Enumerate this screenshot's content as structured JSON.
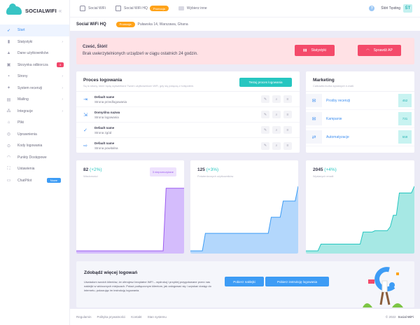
{
  "brand": {
    "name": "SOCIALWIFI",
    "collapse_icon": "double-chevron-left-icon"
  },
  "sidebar": {
    "items": [
      {
        "label": "Start",
        "icon": "rocket-icon",
        "active": true
      },
      {
        "label": "Statystyki",
        "icon": "bar-chart-icon",
        "chevron": true
      },
      {
        "label": "Dane użytkowników",
        "icon": "users-icon"
      },
      {
        "label": "Skrzynka odbiorcza",
        "icon": "inbox-icon",
        "badge": "3"
      },
      {
        "label": "Strony",
        "icon": "pages-icon",
        "chevron": true
      },
      {
        "label": "System recenzji",
        "icon": "star-icon",
        "chevron": true
      },
      {
        "label": "Mailing",
        "icon": "mail-icon",
        "chevron": true
      },
      {
        "label": "Integracje",
        "icon": "plug-icon",
        "chevron": true
      },
      {
        "label": "Pliki",
        "icon": "file-icon"
      },
      {
        "label": "Uprawnienia",
        "icon": "shield-icon"
      },
      {
        "label": "Kody logowania",
        "icon": "key-icon"
      },
      {
        "label": "Punkty Dostępowe",
        "icon": "wifi-icon"
      },
      {
        "label": "Ustawienia",
        "icon": "settings-icon"
      },
      {
        "label": "ChatPilot",
        "icon": "chat-icon",
        "badge_new": "Nowe"
      }
    ]
  },
  "topbar": {
    "crumbs": [
      {
        "label": "Social WiFi",
        "icon": "home-icon"
      },
      {
        "label": "Social WiFi HQ",
        "icon": "warning-icon",
        "badge": "Promocja"
      },
      {
        "label": "Wybierz inne",
        "icon": "folder-icon"
      }
    ],
    "help_icon": "?",
    "user_name": "Ślóń Tęsting",
    "avatar": "ŚT"
  },
  "subbar": {
    "title": "Social WiFi HQ",
    "badge": "Promocja",
    "address": "Puławska 14, Warszawa, Ghana"
  },
  "alert": {
    "title": "Cześć, Ślóń!",
    "message": "Brak uwierzytelnionych urządzeń w ciągu ostatnich 24 godzin.",
    "buttons": [
      {
        "label": "Statystyki",
        "icon": "bar-chart-icon"
      },
      {
        "label": "Sprawdź AP",
        "icon": "wifi-icon"
      }
    ]
  },
  "login_process": {
    "title": "Proces logowania",
    "subtitle": "Są to strony, które będą wyświetlane Twoim użytkownikom WiFi, gdy się połączą z hotspotem.",
    "test_button": "Testuj proces logowania",
    "rows": [
      {
        "name": "Default name",
        "page": "Strona przedlogowania",
        "icon": "login-arrow-icon"
      },
      {
        "name": "Domyślna nazwa",
        "page": "Strona logowania",
        "icon": "login-door-icon"
      },
      {
        "name": "Default name",
        "page": "Strona zgód",
        "icon": "check-icon"
      },
      {
        "name": "Default name",
        "page": "Strona powitalna",
        "icon": "welcome-icon"
      }
    ],
    "actions": [
      "edit-icon",
      "search-icon",
      "menu-icon"
    ]
  },
  "marketing": {
    "title": "Marketing",
    "subtitle": "Całkowita liczba wysłanych e-maili.",
    "rows": [
      {
        "label": "Prośby recenzji",
        "count": "452",
        "icon": "envelope-icon"
      },
      {
        "label": "Kampanie",
        "count": "731",
        "icon": "envelope-open-icon"
      },
      {
        "label": "Automatyzacje",
        "count": "559",
        "icon": "automation-icon"
      }
    ]
  },
  "stats": [
    {
      "value": "82",
      "pct": "(+2%)",
      "label": "Wiadomości",
      "pill": "3 nieprzeczytane",
      "color": "#9c5cf0",
      "fill": "#d4bcfc"
    },
    {
      "value": "125",
      "pct": "(+3%)",
      "label": "Potwierdzonych użytkowników",
      "color": "#3d9cf5",
      "fill": "#b3d7fc"
    },
    {
      "value": "2045",
      "pct": "(+4%)",
      "label": "Wysłanych emaili",
      "color": "#26c6c0",
      "fill": "#a6e8e4"
    }
  ],
  "chart_data": [
    {
      "type": "area",
      "title": "Wiadomości",
      "values": [
        2,
        2,
        2,
        2,
        2,
        2,
        2,
        2,
        2,
        2,
        2,
        2,
        2,
        2,
        2,
        2,
        2,
        2,
        2,
        2,
        2,
        2,
        2,
        2,
        2,
        2,
        2,
        2,
        2,
        2,
        95,
        95,
        95,
        95,
        95,
        95,
        95
      ]
    },
    {
      "type": "area",
      "title": "Potwierdzonych użytkowników",
      "values": [
        2,
        2,
        2,
        2,
        2,
        28,
        28,
        28,
        28,
        28,
        28,
        28,
        28,
        28,
        28,
        28,
        28,
        28,
        28,
        28,
        28,
        28,
        28,
        28,
        28,
        28,
        28,
        52,
        52,
        52,
        52,
        76,
        76,
        76,
        76,
        76,
        98
      ]
    },
    {
      "type": "area",
      "title": "Wysłanych emaili",
      "values": [
        2,
        2,
        2,
        2,
        2,
        12,
        12,
        12,
        12,
        12,
        12,
        12,
        12,
        12,
        12,
        12,
        12,
        12,
        12,
        30,
        30,
        30,
        30,
        32,
        32,
        32,
        32,
        32,
        38,
        55,
        55,
        88,
        88,
        88,
        88,
        88,
        98
      ]
    }
  ],
  "promo": {
    "title": "Zdobądź więcej logowań",
    "text": "Uświadom swoich klientów, że oferujesz bezpłatne WiFi – wydrukuj i przyklej przygotowane przez nas naklejki w widocznych miejscach. Pokaż podłączonym klientom, jak zalogować się i uzyskać dostęp do internetu, pokazując im instrukcję logowania.",
    "buttons": [
      "Pobierz naklejki",
      "Pobierz instrukcję logowania"
    ]
  },
  "footer": {
    "links": [
      "Regulamin",
      "Polityka prywatności",
      "Kontakt",
      "Stan systemu"
    ],
    "copyright": "© 2022",
    "brand": "Social WiFi"
  }
}
